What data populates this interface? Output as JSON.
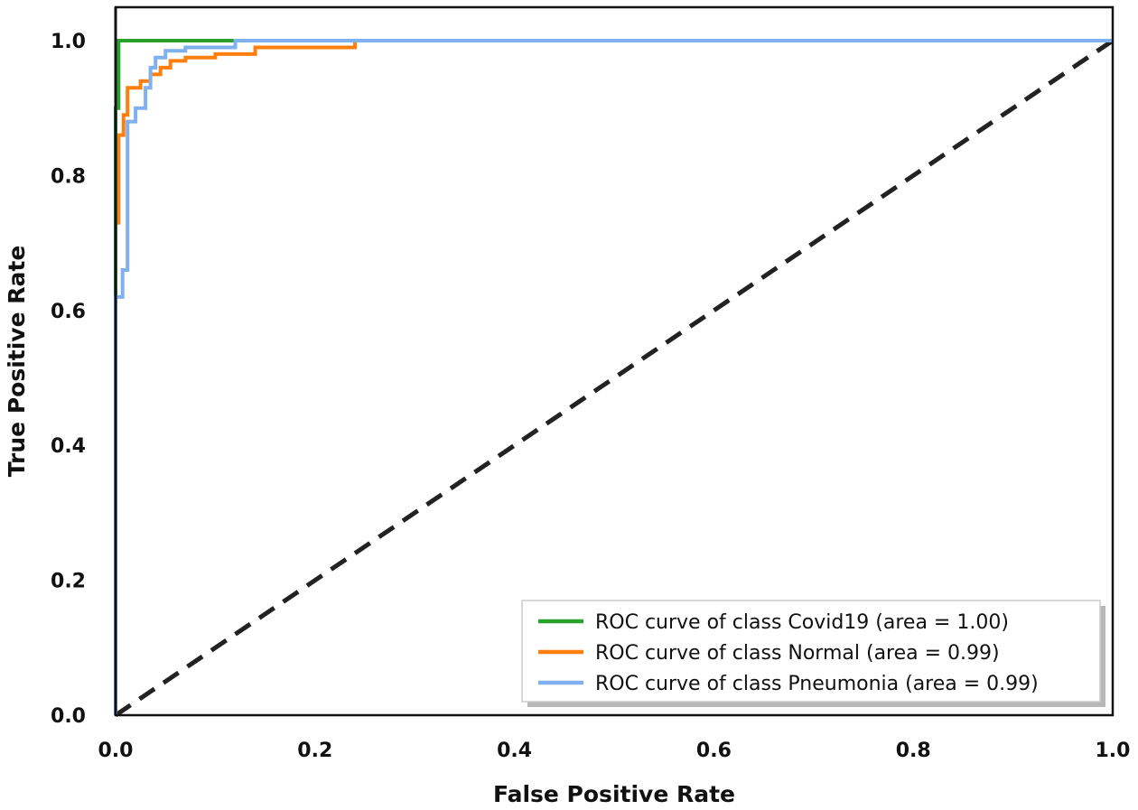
{
  "chart_data": {
    "type": "line",
    "xlabel": "False Positive Rate",
    "ylabel": "True Positive Rate",
    "xlim": [
      0.0,
      1.0
    ],
    "ylim": [
      0.0,
      1.0
    ],
    "x_ticks": [
      "0.0",
      "0.2",
      "0.4",
      "0.6",
      "0.8",
      "1.0"
    ],
    "y_ticks": [
      "0.0",
      "0.2",
      "0.4",
      "0.6",
      "0.8",
      "1.0"
    ],
    "grid": false,
    "legend_position": "bottom-right",
    "colors": {
      "Covid19": "#2ca02c",
      "Normal": "#ff7f0e",
      "Pneumonia": "#7fb0ef",
      "baseline": "#222222",
      "frame": "#111111"
    },
    "series": [
      {
        "key": "Covid19",
        "label": "ROC curve of class Covid19 (area = 1.00)",
        "points": [
          [
            0.0,
            0.0
          ],
          [
            0.0,
            0.9
          ],
          [
            0.003,
            0.9
          ],
          [
            0.003,
            1.0
          ],
          [
            0.16,
            1.0
          ],
          [
            1.0,
            1.0
          ]
        ]
      },
      {
        "key": "Normal",
        "label": "ROC curve of class Normal (area = 0.99)",
        "points": [
          [
            0.0,
            0.0
          ],
          [
            0.0,
            0.73
          ],
          [
            0.003,
            0.73
          ],
          [
            0.003,
            0.86
          ],
          [
            0.008,
            0.86
          ],
          [
            0.008,
            0.89
          ],
          [
            0.012,
            0.89
          ],
          [
            0.012,
            0.93
          ],
          [
            0.025,
            0.93
          ],
          [
            0.025,
            0.94
          ],
          [
            0.035,
            0.94
          ],
          [
            0.035,
            0.95
          ],
          [
            0.045,
            0.95
          ],
          [
            0.045,
            0.96
          ],
          [
            0.055,
            0.96
          ],
          [
            0.055,
            0.97
          ],
          [
            0.07,
            0.97
          ],
          [
            0.07,
            0.975
          ],
          [
            0.1,
            0.975
          ],
          [
            0.1,
            0.98
          ],
          [
            0.14,
            0.98
          ],
          [
            0.14,
            0.99
          ],
          [
            0.24,
            0.99
          ],
          [
            0.24,
            1.0
          ],
          [
            1.0,
            1.0
          ]
        ]
      },
      {
        "key": "Pneumonia",
        "label": "ROC curve of class Pneumonia (area = 0.99)",
        "points": [
          [
            0.0,
            0.0
          ],
          [
            0.0,
            0.62
          ],
          [
            0.007,
            0.62
          ],
          [
            0.007,
            0.66
          ],
          [
            0.012,
            0.66
          ],
          [
            0.012,
            0.88
          ],
          [
            0.02,
            0.88
          ],
          [
            0.02,
            0.9
          ],
          [
            0.03,
            0.9
          ],
          [
            0.03,
            0.93
          ],
          [
            0.035,
            0.93
          ],
          [
            0.035,
            0.96
          ],
          [
            0.04,
            0.96
          ],
          [
            0.04,
            0.975
          ],
          [
            0.05,
            0.975
          ],
          [
            0.05,
            0.985
          ],
          [
            0.07,
            0.985
          ],
          [
            0.07,
            0.99
          ],
          [
            0.12,
            0.99
          ],
          [
            0.12,
            1.0
          ],
          [
            1.0,
            1.0
          ]
        ]
      },
      {
        "key": "baseline",
        "label": "",
        "points": [
          [
            0.0,
            0.0
          ],
          [
            1.0,
            1.0
          ]
        ]
      }
    ]
  }
}
